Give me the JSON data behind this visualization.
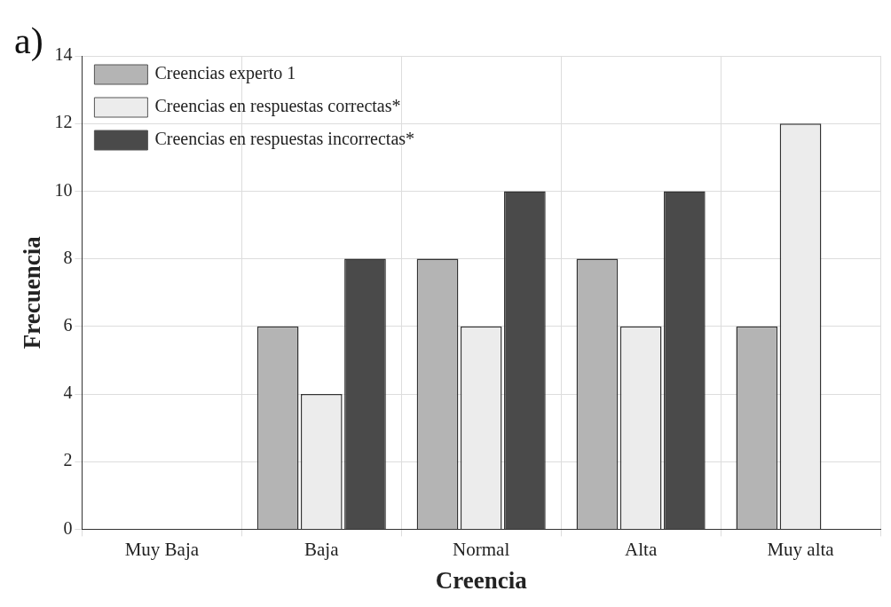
{
  "chart_data": {
    "type": "bar",
    "xlabel": "Creencia",
    "ylabel": "Frecuencia",
    "annotations": [
      "a)"
    ],
    "categories": [
      "Muy Baja",
      "Baja",
      "Normal",
      "Alta",
      "Muy alta"
    ],
    "series": [
      {
        "name": "Creencias experto 1",
        "color": "#b4b4b4",
        "values": [
          0,
          6,
          8,
          8,
          6
        ]
      },
      {
        "name": "Creencias en respuestas correctas*",
        "color": "#ececec",
        "values": [
          0,
          4,
          6,
          6,
          12
        ]
      },
      {
        "name": "Creencias en respuestas incorrectas*",
        "color": "#4a4a4a",
        "values": [
          0,
          8,
          10,
          10,
          0
        ]
      }
    ],
    "ylim": [
      0,
      14
    ],
    "yticks": [
      0,
      2,
      4,
      6,
      8,
      10,
      12,
      14
    ],
    "grid": true,
    "legend": "top left"
  }
}
